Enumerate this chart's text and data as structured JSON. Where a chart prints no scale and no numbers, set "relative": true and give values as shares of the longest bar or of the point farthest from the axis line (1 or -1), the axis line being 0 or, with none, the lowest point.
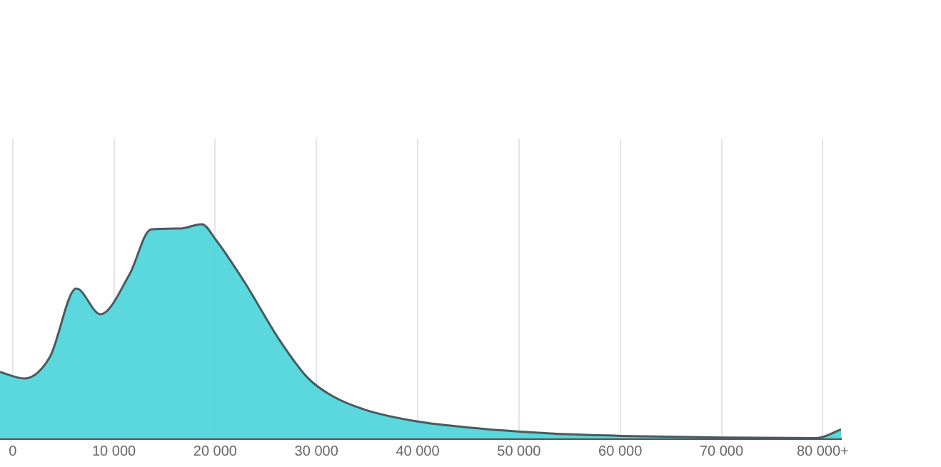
{
  "chart_data": {
    "type": "area",
    "relative": true,
    "grid": "x",
    "legend": false,
    "xlim": [
      -1250,
      81810
    ],
    "xticks": [
      0,
      {
        "value": 10000,
        "label": "10 000"
      },
      {
        "value": 20000,
        "label": "20 000"
      },
      {
        "value": 30000,
        "label": "30 000"
      },
      {
        "value": 40000,
        "label": "40 000"
      },
      {
        "value": 50000,
        "label": "50 000"
      },
      {
        "value": 60000,
        "label": "60 000"
      },
      {
        "value": 70000,
        "label": "70 000"
      },
      {
        "value": 80000,
        "label": "80 000+"
      }
    ],
    "x": [
      -1250,
      1150,
      3670,
      6290,
      8670,
      11530,
      13670,
      16530,
      18670,
      20100,
      22960,
      26290,
      29140,
      31530,
      34860,
      40100,
      44860,
      50100,
      55810,
      60100,
      70100,
      79390,
      81810
    ],
    "series": [
      {
        "color": "#4fd5db",
        "values": [
          0.31,
          0.28,
          0.38,
          0.7,
          0.58,
          0.765,
          0.976,
          0.98,
          1,
          0.925,
          0.725,
          0.464,
          0.283,
          0.199,
          0.133,
          0.078,
          0.052,
          0.032,
          0.018,
          0.012,
          0.004,
          0.002,
          0.042
        ]
      }
    ]
  }
}
